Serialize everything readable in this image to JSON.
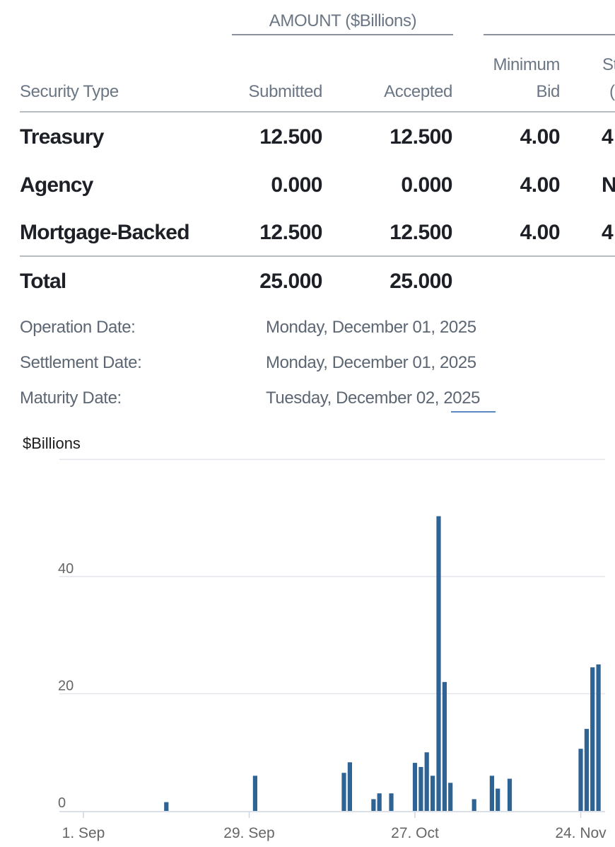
{
  "table": {
    "group_header": "AMOUNT ($Billions)",
    "columns": {
      "security_type": "Security Type",
      "submitted": "Submitted",
      "accepted": "Accepted",
      "minimum_bid_line1": "Minimum",
      "minimum_bid_line2": "Bid",
      "cut_col_line1": "St",
      "cut_col_line2": "("
    },
    "rows": [
      {
        "type": "Treasury",
        "submitted": "12.500",
        "accepted": "12.500",
        "min_bid": "4.00",
        "cut": "4"
      },
      {
        "type": "Agency",
        "submitted": "0.000",
        "accepted": "0.000",
        "min_bid": "4.00",
        "cut": "N"
      },
      {
        "type": "Mortgage-Backed",
        "submitted": "12.500",
        "accepted": "12.500",
        "min_bid": "4.00",
        "cut": "4"
      }
    ],
    "total": {
      "label": "Total",
      "submitted": "25.000",
      "accepted": "25.000"
    }
  },
  "dates": [
    {
      "label": "Operation Date:",
      "value": "Monday, December 01, 2025"
    },
    {
      "label": "Settlement Date:",
      "value": "Monday, December 01, 2025"
    },
    {
      "label": "Maturity Date:",
      "value": "Tuesday, December 02, 2025"
    }
  ],
  "colors": {
    "bar": "#2f6394",
    "grid": "#e3e6eb",
    "axis_text": "#666666"
  },
  "chart_data": {
    "type": "bar",
    "ylabel": "$Billions",
    "ylim": [
      0,
      60
    ],
    "yticks": [
      0,
      20,
      40
    ],
    "x_tick_labels": [
      "1. Sep",
      "29. Sep",
      "27. Oct",
      "24. Nov"
    ],
    "x_tick_dates": [
      "2025-09-01",
      "2025-09-29",
      "2025-10-27",
      "2025-11-24"
    ],
    "bars": [
      {
        "date": "2025-09-15",
        "value": 1.5
      },
      {
        "date": "2025-09-30",
        "value": 6.0
      },
      {
        "date": "2025-10-15",
        "value": 6.5
      },
      {
        "date": "2025-10-16",
        "value": 8.3
      },
      {
        "date": "2025-10-20",
        "value": 2.0
      },
      {
        "date": "2025-10-21",
        "value": 3.0
      },
      {
        "date": "2025-10-23",
        "value": 3.0
      },
      {
        "date": "2025-10-27",
        "value": 8.2
      },
      {
        "date": "2025-10-28",
        "value": 7.5
      },
      {
        "date": "2025-10-29",
        "value": 10.0
      },
      {
        "date": "2025-10-30",
        "value": 6.0
      },
      {
        "date": "2025-10-31",
        "value": 50.3
      },
      {
        "date": "2025-11-01",
        "value": 22.0
      },
      {
        "date": "2025-11-02",
        "value": 4.8
      },
      {
        "date": "2025-11-06",
        "value": 2.0
      },
      {
        "date": "2025-11-09",
        "value": 6.0
      },
      {
        "date": "2025-11-10",
        "value": 3.8
      },
      {
        "date": "2025-11-12",
        "value": 5.5
      },
      {
        "date": "2025-11-24",
        "value": 10.6
      },
      {
        "date": "2025-11-25",
        "value": 14.0
      },
      {
        "date": "2025-11-26",
        "value": 24.5
      },
      {
        "date": "2025-11-27",
        "value": 25.0
      }
    ]
  }
}
